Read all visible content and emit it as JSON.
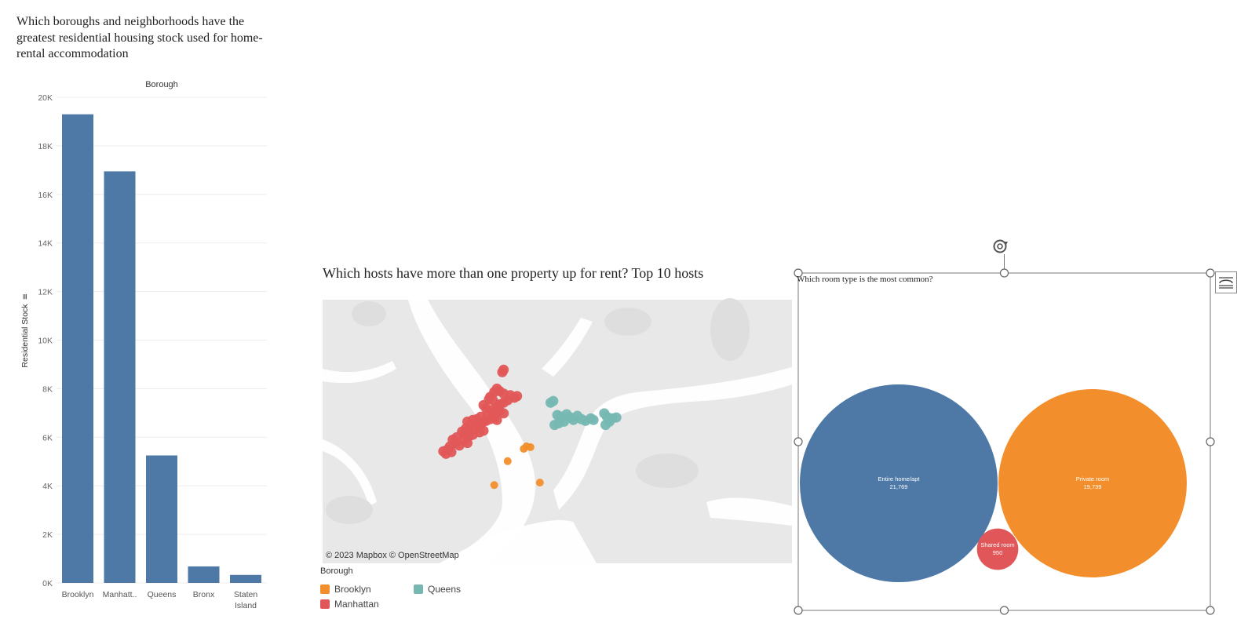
{
  "bar_section": {
    "title": "Which boroughs and neighborhoods have the greatest residential housing stock used for home-rental accommodation",
    "header": "Borough",
    "axis_label": "Residential Stock"
  },
  "map_section": {
    "title": "Which hosts have more than one property up for rent? Top 10 hosts",
    "attribution": "© 2023 Mapbox  © OpenStreetMap",
    "legend_title": "Borough",
    "legend_items": [
      {
        "label": "Brooklyn",
        "color": "#F28E2B"
      },
      {
        "label": "Queens",
        "color": "#76B7B2"
      },
      {
        "label": "Manhattan",
        "color": "#E15759"
      }
    ]
  },
  "bubble_section": {
    "title": "Which room type is the most common?"
  },
  "chart_data": [
    {
      "type": "bar",
      "title": "",
      "xlabel": "Borough",
      "ylabel": "Residential Stock",
      "categories": [
        "Brooklyn",
        "Manhatt..",
        "Queens",
        "Bronx",
        "Staten Island"
      ],
      "values": [
        19300,
        16950,
        5250,
        680,
        330
      ],
      "ylim": [
        0,
        20000
      ],
      "yticks": [
        "0K",
        "2K",
        "4K",
        "6K",
        "8K",
        "10K",
        "12K",
        "14K",
        "16K",
        "18K",
        "20K"
      ],
      "color": "#4E79A7",
      "grid": true
    },
    {
      "type": "scatter",
      "title": "",
      "description_series": [
        {
          "name": "Manhattan",
          "color": "#E15759",
          "points": [
            [
              -73.955,
              40.805
            ],
            [
              -73.956,
              40.802
            ],
            [
              -73.96,
              40.782
            ],
            [
              -73.962,
              40.778
            ],
            [
              -73.958,
              40.779
            ],
            [
              -73.955,
              40.776
            ],
            [
              -73.965,
              40.772
            ],
            [
              -73.966,
              40.769
            ],
            [
              -73.963,
              40.768
            ],
            [
              -73.95,
              40.774
            ],
            [
              -73.947,
              40.771
            ],
            [
              -73.945,
              40.773
            ],
            [
              -73.952,
              40.768
            ],
            [
              -73.955,
              40.765
            ],
            [
              -73.958,
              40.763
            ],
            [
              -73.97,
              40.762
            ],
            [
              -73.968,
              40.758
            ],
            [
              -73.964,
              40.756
            ],
            [
              -73.96,
              40.759
            ],
            [
              -73.958,
              40.755
            ],
            [
              -73.955,
              40.752
            ],
            [
              -73.962,
              40.751
            ],
            [
              -73.967,
              40.75
            ],
            [
              -73.972,
              40.748
            ],
            [
              -73.975,
              40.745
            ],
            [
              -73.978,
              40.744
            ],
            [
              -73.982,
              40.742
            ],
            [
              -73.98,
              40.738
            ],
            [
              -73.976,
              40.739
            ],
            [
              -73.971,
              40.741
            ],
            [
              -73.968,
              40.743
            ],
            [
              -73.965,
              40.745
            ],
            [
              -73.962,
              40.747
            ],
            [
              -73.96,
              40.744
            ],
            [
              -73.973,
              40.736
            ],
            [
              -73.977,
              40.733
            ],
            [
              -73.983,
              40.734
            ],
            [
              -73.986,
              40.73
            ],
            [
              -73.984,
              40.727
            ],
            [
              -73.981,
              40.724
            ],
            [
              -73.978,
              40.726
            ],
            [
              -73.973,
              40.729
            ],
            [
              -73.97,
              40.731
            ],
            [
              -73.99,
              40.723
            ],
            [
              -73.993,
              40.72
            ],
            [
              -73.991,
              40.716
            ],
            [
              -73.988,
              40.713
            ],
            [
              -73.995,
              40.712
            ],
            [
              -73.997,
              40.708
            ],
            [
              -73.994,
              40.705
            ],
            [
              -73.998,
              40.703
            ],
            [
              -74.0,
              40.706
            ],
            [
              -73.985,
              40.719
            ],
            [
              -73.982,
              40.716
            ]
          ]
        },
        {
          "name": "Queens",
          "color": "#76B7B2",
          "points": [
            [
              -73.92,
              40.765
            ],
            [
              -73.918,
              40.767
            ],
            [
              -73.915,
              40.75
            ],
            [
              -73.912,
              40.748
            ],
            [
              -73.908,
              40.751
            ],
            [
              -73.905,
              40.747
            ],
            [
              -73.903,
              40.744
            ],
            [
              -73.9,
              40.749
            ],
            [
              -73.897,
              40.745
            ],
            [
              -73.894,
              40.743
            ],
            [
              -73.89,
              40.746
            ],
            [
              -73.888,
              40.744
            ],
            [
              -73.91,
              40.742
            ],
            [
              -73.914,
              40.74
            ],
            [
              -73.917,
              40.738
            ],
            [
              -73.88,
              40.752
            ],
            [
              -73.878,
              40.748
            ],
            [
              -73.874,
              40.746
            ],
            [
              -73.876,
              40.742
            ],
            [
              -73.879,
              40.738
            ],
            [
              -73.871,
              40.747
            ]
          ]
        },
        {
          "name": "Brooklyn",
          "color": "#F28E2B",
          "points": [
            [
              -73.938,
              40.712
            ],
            [
              -73.94,
              40.709
            ],
            [
              -73.935,
              40.711
            ],
            [
              -73.952,
              40.694
            ],
            [
              -73.962,
              40.665
            ],
            [
              -73.928,
              40.668
            ]
          ]
        }
      ]
    },
    {
      "type": "bubble",
      "title": "",
      "items": [
        {
          "label": "Entire home/apt",
          "value": 21769,
          "value_label": "21,769",
          "color": "#4E79A7"
        },
        {
          "label": "Private room",
          "value": 19739,
          "value_label": "19,739",
          "color": "#F28E2B"
        },
        {
          "label": "Shared room",
          "value": 950,
          "value_label": "950",
          "color": "#E15759"
        }
      ]
    }
  ]
}
